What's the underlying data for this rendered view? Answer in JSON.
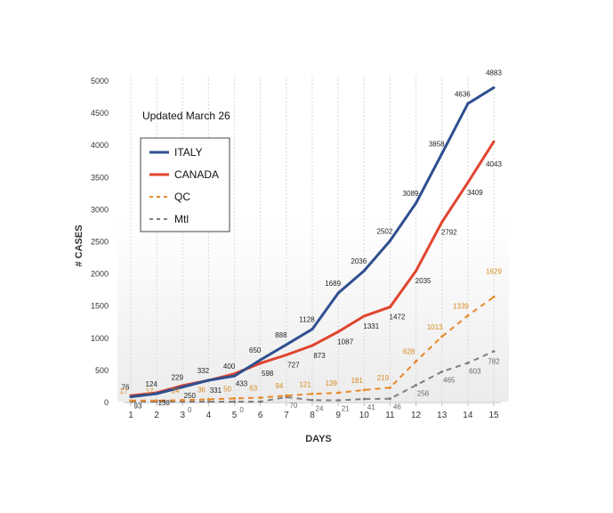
{
  "chart_data": {
    "type": "line",
    "title": "",
    "annotation": "Updated March 26",
    "xlabel": "DAYS",
    "ylabel": "# CASES",
    "ylim": [
      0,
      5000
    ],
    "yticks": [
      0,
      500,
      1000,
      1500,
      2000,
      2500,
      3000,
      3500,
      4000,
      4500,
      5000
    ],
    "x": [
      1,
      2,
      3,
      4,
      5,
      6,
      7,
      8,
      9,
      10,
      11,
      12,
      13,
      14,
      15
    ],
    "grid": "vertical dashed",
    "legend_position": "top-left",
    "series": [
      {
        "name": "ITALY",
        "color": "#2f4f8f",
        "style": "solid",
        "values": [
          76,
          124,
          229,
          332,
          400,
          650,
          888,
          1128,
          1689,
          2036,
          2502,
          3089,
          3858,
          4636,
          4883
        ]
      },
      {
        "name": "CANADA",
        "color": "#e0452f",
        "style": "solid",
        "values": [
          93,
          138,
          250,
          331,
          433,
          598,
          727,
          873,
          1087,
          1331,
          1472,
          2035,
          2792,
          3409,
          4043
        ]
      },
      {
        "name": "QC",
        "color": "#e8892a",
        "style": "dashed",
        "values": [
          17,
          17,
          24,
          36,
          50,
          63,
          94,
          121,
          139,
          181,
          219,
          628,
          1013,
          1339,
          1629
        ]
      },
      {
        "name": "Mtl",
        "color": "#808080",
        "style": "dashed",
        "values": [
          0,
          0,
          0,
          0,
          0,
          0,
          70,
          24,
          21,
          41,
          46,
          256,
          465,
          603,
          782
        ]
      }
    ],
    "data_labels": [
      {
        "series": "ITALY",
        "labels": [
          "76",
          "124",
          "229",
          "332",
          "400",
          "650",
          "888",
          "1128",
          "1689",
          "2036",
          "2502",
          "3089",
          "3858",
          "4636",
          "4883"
        ]
      },
      {
        "series": "CANADA",
        "labels": [
          "93",
          "138",
          "250",
          "331",
          "433",
          "598",
          "727",
          "873",
          "1087",
          "1331",
          "1472",
          "2035",
          "2792",
          "3409",
          "4043"
        ]
      },
      {
        "series": "QC",
        "labels": [
          "17",
          "17",
          "24",
          "36",
          "50",
          "63",
          "94",
          "121",
          "139",
          "181",
          "219",
          "628",
          "1013",
          "1339",
          "1629"
        ]
      },
      {
        "series": "Mtl",
        "labels": [
          "",
          "",
          "0",
          "",
          "0",
          "",
          "70",
          "24",
          "21",
          "41",
          "46",
          "256",
          "465",
          "603",
          "782"
        ]
      }
    ]
  }
}
